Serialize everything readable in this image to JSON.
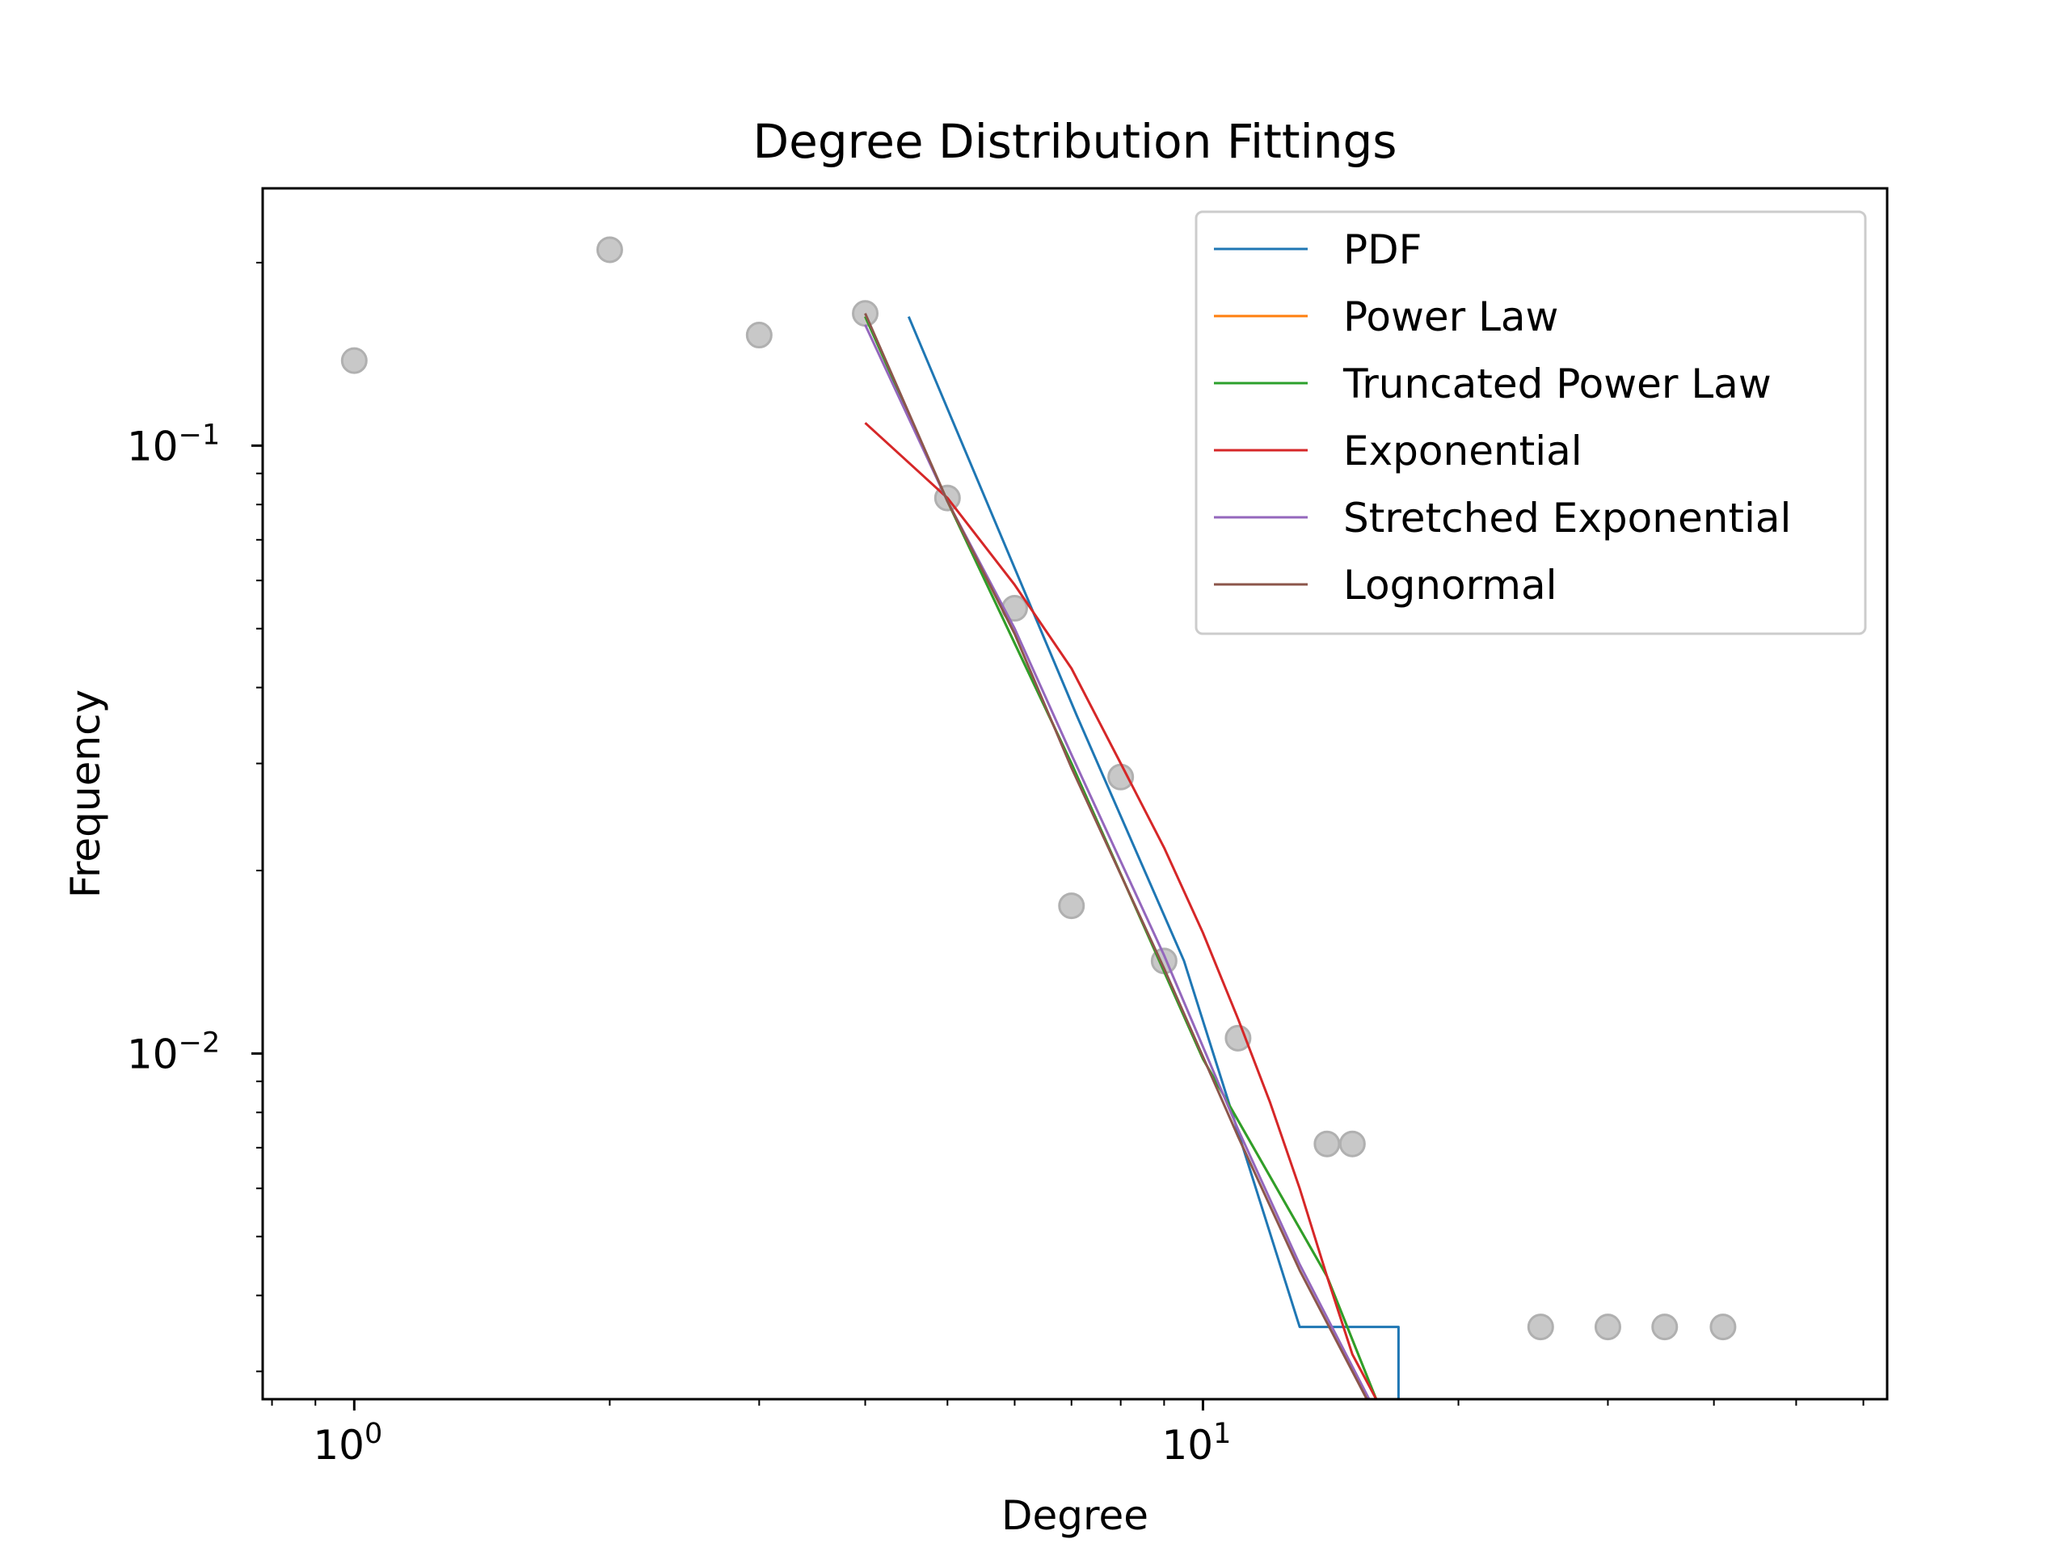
{
  "chart_data": {
    "type": "line",
    "title": "Degree Distribution Fittings",
    "xlabel": "Degree",
    "ylabel": "Frequency",
    "x_scale": "log",
    "y_scale": "log",
    "xlim": [
      0.78,
      64
    ],
    "ylim": [
      0.0027,
      0.265
    ],
    "grid": false,
    "legend_position": "upper right",
    "x_ticks": [
      {
        "value": 1,
        "label": "10",
        "exp": "0"
      },
      {
        "value": 10,
        "label": "10",
        "exp": "1"
      }
    ],
    "y_ticks": [
      {
        "value": 0.1,
        "label": "10",
        "exp": "−1"
      },
      {
        "value": 0.01,
        "label": "10",
        "exp": "−2"
      }
    ],
    "scatter": {
      "color": "#b0b0b0",
      "points": [
        {
          "x": 1,
          "y": 0.138
        },
        {
          "x": 2,
          "y": 0.21
        },
        {
          "x": 3,
          "y": 0.152
        },
        {
          "x": 4,
          "y": 0.165
        },
        {
          "x": 5,
          "y": 0.082
        },
        {
          "x": 6,
          "y": 0.054
        },
        {
          "x": 7,
          "y": 0.0175
        },
        {
          "x": 8,
          "y": 0.0285
        },
        {
          "x": 9,
          "y": 0.0142
        },
        {
          "x": 11,
          "y": 0.0106
        },
        {
          "x": 14,
          "y": 0.0071
        },
        {
          "x": 15,
          "y": 0.0071
        },
        {
          "x": 25,
          "y": 0.00355
        },
        {
          "x": 30,
          "y": 0.00355
        },
        {
          "x": 35,
          "y": 0.00355
        },
        {
          "x": 41,
          "y": 0.00355
        }
      ]
    },
    "series": [
      {
        "name": "PDF",
        "color": "#1f77b4",
        "points": [
          [
            4.5,
            0.163
          ],
          [
            7.1,
            0.036
          ],
          [
            9.5,
            0.0142
          ],
          [
            13,
            0.00355
          ],
          [
            17,
            0.00355
          ],
          [
            17,
            0.0027
          ]
        ]
      },
      {
        "name": "Power Law",
        "color": "#ff7f0e",
        "points": [
          [
            4,
            0.163
          ],
          [
            5,
            0.081
          ],
          [
            7,
            0.03
          ],
          [
            10,
            0.0098
          ],
          [
            14,
            0.0043
          ],
          [
            16,
            0.0027
          ]
        ]
      },
      {
        "name": "Truncated Power Law",
        "color": "#2ca02c",
        "points": [
          [
            4,
            0.163
          ],
          [
            5,
            0.081
          ],
          [
            7,
            0.03
          ],
          [
            10,
            0.0098
          ],
          [
            14,
            0.0043
          ],
          [
            16,
            0.0027
          ]
        ]
      },
      {
        "name": "Exponential",
        "color": "#d62728",
        "points": [
          [
            4,
            0.109
          ],
          [
            5,
            0.082
          ],
          [
            6,
            0.059
          ],
          [
            7,
            0.043
          ],
          [
            8,
            0.03
          ],
          [
            9,
            0.0218
          ],
          [
            10,
            0.0158
          ],
          [
            11,
            0.0114
          ],
          [
            12,
            0.0083
          ],
          [
            13,
            0.006
          ],
          [
            14,
            0.0043
          ],
          [
            15,
            0.0032
          ],
          [
            16,
            0.0027
          ]
        ]
      },
      {
        "name": "Stretched Exponential",
        "color": "#9467bd",
        "points": [
          [
            4,
            0.158
          ],
          [
            5,
            0.081
          ],
          [
            6,
            0.05
          ],
          [
            7,
            0.031
          ],
          [
            9,
            0.0145
          ],
          [
            11,
            0.0075
          ],
          [
            13,
            0.0045
          ],
          [
            15.7,
            0.0027
          ]
        ]
      },
      {
        "name": "Lognormal",
        "color": "#8c564b",
        "points": [
          [
            4,
            0.165
          ],
          [
            5,
            0.081
          ],
          [
            6,
            0.049
          ],
          [
            7,
            0.0295
          ],
          [
            9,
            0.0138
          ],
          [
            11,
            0.0073
          ],
          [
            13,
            0.0044
          ],
          [
            15.6,
            0.0027
          ]
        ]
      }
    ]
  }
}
